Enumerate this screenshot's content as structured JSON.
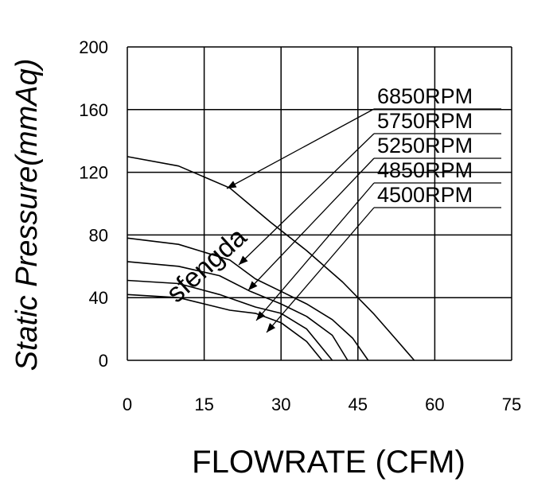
{
  "chart_data": {
    "type": "line",
    "x_label": "FLOWRATE (CFM)",
    "y_label": "Static  Pressure(mmAq)",
    "watermark": "sfengda",
    "xlim": [
      0,
      75
    ],
    "xticks": [
      0,
      15,
      30,
      45,
      60,
      75
    ],
    "ylim": [
      0,
      200
    ],
    "yticks": [
      0,
      40,
      80,
      120,
      160,
      200
    ],
    "grid": true,
    "series": [
      {
        "name": "6850RPM",
        "color": "#000000",
        "x": [
          0,
          10,
          20,
          28,
          35,
          42,
          48,
          52,
          56
        ],
        "values": [
          130,
          124,
          110,
          88,
          70,
          50,
          30,
          15,
          0
        ]
      },
      {
        "name": "5750RPM",
        "color": "#000000",
        "x": [
          0,
          10,
          20,
          25,
          30,
          35,
          40,
          44,
          47
        ],
        "values": [
          78,
          74,
          64,
          52,
          44,
          36,
          26,
          14,
          0
        ]
      },
      {
        "name": "5250RPM",
        "color": "#000000",
        "x": [
          0,
          10,
          18,
          24,
          30,
          35,
          40,
          43
        ],
        "values": [
          63,
          60,
          54,
          44,
          36,
          28,
          16,
          0
        ]
      },
      {
        "name": "4850RPM",
        "color": "#000000",
        "x": [
          0,
          10,
          18,
          25,
          30,
          35,
          40
        ],
        "values": [
          51,
          49,
          42,
          34,
          30,
          20,
          0
        ]
      },
      {
        "name": "4500RPM",
        "color": "#000000",
        "x": [
          0,
          10,
          20,
          25,
          30,
          35,
          38
        ],
        "values": [
          42,
          40,
          32,
          30,
          24,
          12,
          0
        ]
      }
    ]
  }
}
